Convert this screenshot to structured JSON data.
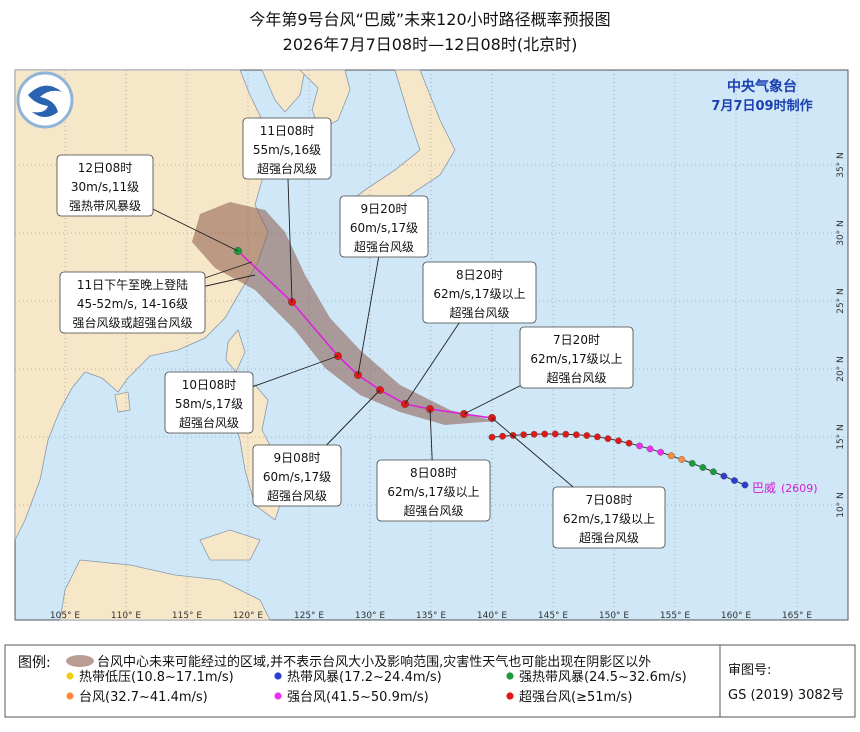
{
  "header": {
    "title": "今年第9号台风“巴威”未来120小时路径概率预报图",
    "subtitle": "2026年7月7日08时—12日08时(北京时)"
  },
  "agency": {
    "name": "中央气象台",
    "made": "7月7日09时制作"
  },
  "axes": {
    "lon_labels": [
      "105° E",
      "110° E",
      "115° E",
      "120° E",
      "125° E",
      "130° E",
      "135° E",
      "140° E",
      "145° E",
      "150° E",
      "155° E",
      "160° E",
      "165° E"
    ],
    "lat_labels": [
      "10° N",
      "15° N",
      "20° N",
      "25° N",
      "30° N",
      "35° N"
    ]
  },
  "typhoon": {
    "name": "巴威",
    "code": "(2609)"
  },
  "annotations": [
    {
      "lines": [
        "11日08时",
        "55m/s,16级",
        "超强台风级"
      ]
    },
    {
      "lines": [
        "12日08时",
        "30m/s,11级",
        "强热带风暴级"
      ]
    },
    {
      "lines": [
        "9日20时",
        "60m/s,17级",
        "超强台风级"
      ]
    },
    {
      "lines": [
        "11日下午至晚上登陆",
        "45-52m/s, 14-16级",
        "强台风级或超强台风级"
      ]
    },
    {
      "lines": [
        "8日20时",
        "62m/s,17级以上",
        "超强台风级"
      ]
    },
    {
      "lines": [
        "7日20时",
        "62m/s,17级以上",
        "超强台风级"
      ]
    },
    {
      "lines": [
        "10日08时",
        "58m/s,17级",
        "超强台风级"
      ]
    },
    {
      "lines": [
        "9日08时",
        "60m/s,17级",
        "超强台风级"
      ]
    },
    {
      "lines": [
        "8日08时",
        "62m/s,17级以上",
        "超强台风级"
      ]
    },
    {
      "lines": [
        "7日08时",
        "62m/s,17级以上",
        "超强台风级"
      ]
    }
  ],
  "legend": {
    "title": "图例:",
    "cone": "台风中心未来可能经过的区域,并不表示台风大小及影响范围,灾害性天气也可能出现在阴影区以外",
    "items": [
      {
        "label": "热带低压(10.8~17.1m/s)",
        "color": "#f2cf1a"
      },
      {
        "label": "热带风暴(17.2~24.4m/s)",
        "color": "#2a3fd0"
      },
      {
        "label": "强热带风暴(24.5~32.6m/s)",
        "color": "#1f9a3a"
      },
      {
        "label": "台风(32.7~41.4m/s)",
        "color": "#ff8a3a"
      },
      {
        "label": "强台风(41.5~50.9m/s)",
        "color": "#f030f0"
      },
      {
        "label": "超强台风(≥51m/s)",
        "color": "#e01818"
      }
    ]
  },
  "approval": {
    "label": "审图号:",
    "number": "GS (2019) 3082号"
  }
}
